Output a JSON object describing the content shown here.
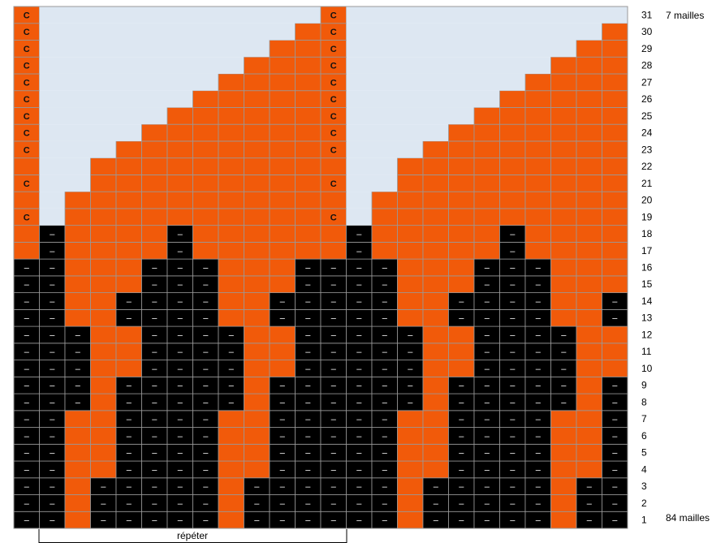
{
  "chart_data": {
    "type": "table",
    "grid": {
      "columns": 24,
      "rows": 31,
      "pattern": [
        "C......................C........................",
        "C......................C........................"
      ]
    },
    "row_numbers": [
      "1",
      "2",
      "3",
      "4",
      "5",
      "6",
      "7",
      "8",
      "9",
      "10",
      "11",
      "12",
      "13",
      "14",
      "15",
      "16",
      "17",
      "18",
      "19",
      "20",
      "21",
      "22",
      "23",
      "24",
      "25",
      "26",
      "27",
      "28",
      "29",
      "30",
      "31"
    ],
    "annotations": {
      "top": "7 mailles",
      "bottom": "84 mailles"
    },
    "repeat_label": "répéter",
    "symbols": {
      "contrast": "C",
      "purl": "–"
    },
    "colors": {
      "orange": "#F15A0A",
      "black": "#000000",
      "empty": "#DDE7F2",
      "grid": "#999999",
      "c_color": "#111111"
    },
    "chart_rows": [
      "B B O B B B B B O B B B B B B O B B B B B O B B",
      "B B O B B B B B O B B B B B B O B B B B B O B B",
      "B B O B B B B B O B B B B B B O B B B B B O B B",
      "B B O O B B B B O O B B B B B O O B B B B O O B",
      "B B O O B B B B O O B B B B B O O B B B B O O B",
      "B B O O B B B B O O B B B B B O O B B B B O O B",
      "B B O O B B B B O O B B B B B O O B B B B O O B",
      "B B B O B B B B B O B B B B B B O B B B B B O B",
      "B B B O B B B B B O B B B B B B O B B B B B O B",
      "B B B O O B B B B O O B B B B B O O B B B B O O",
      "B B B O O B B B B O O B B B B B O O B B B B O O",
      "B B B O O B B B B O O B B B B B O O B B B B O O",
      "B B O O B B B B O O B B B B B O O B B B B O O B",
      "B B O O B B B B O O B B B B B O O B B B B O O B",
      "B B O O O B B B O O O B B B B O O O B B B O O O",
      "B B O O O B B B O O O B B B B O O O B B B O O O",
      "O B O O O O B O O O O O O B O O O O O B O O O O",
      "O B O O O O B O O O O O O B O O O O O B O O O O",
      "O E O O O O O O O O O O O E O O O O O O O O O O",
      "O E O O O O O O O O O O O E O O O O O O O O O O",
      "O E E O O O O O O O O O O E E O O O O O O O O O",
      "O E E O O O O O O O O O O E E O O O O O O O O O",
      "O E E E O O O O O O O O O E E E O O O O O O O O",
      "O E E E E O O O O O O O O E E E E O O O O O O O",
      "O E E E E E O O O O O O O E E E E E O O O O O O",
      "O E E E E E E O O O O O O E E E E E E O O O O O",
      "O E E E E E E E O O O O O E E E E E E E O O O O",
      "O E E E E E E E E O O O O E E E E E E E E O O O",
      "O E E E E E E E E E O O O E E E E E E E E E O O",
      "O E E E E E E E E E E O O E E E E E E E E E E O",
      "O E E E E E E E E E E E O E E E E E E E E E E E"
    ],
    "c_rows": [
      "19",
      "21",
      "23",
      "24",
      "25",
      "26",
      "27",
      "28",
      "29",
      "30",
      "31"
    ]
  }
}
